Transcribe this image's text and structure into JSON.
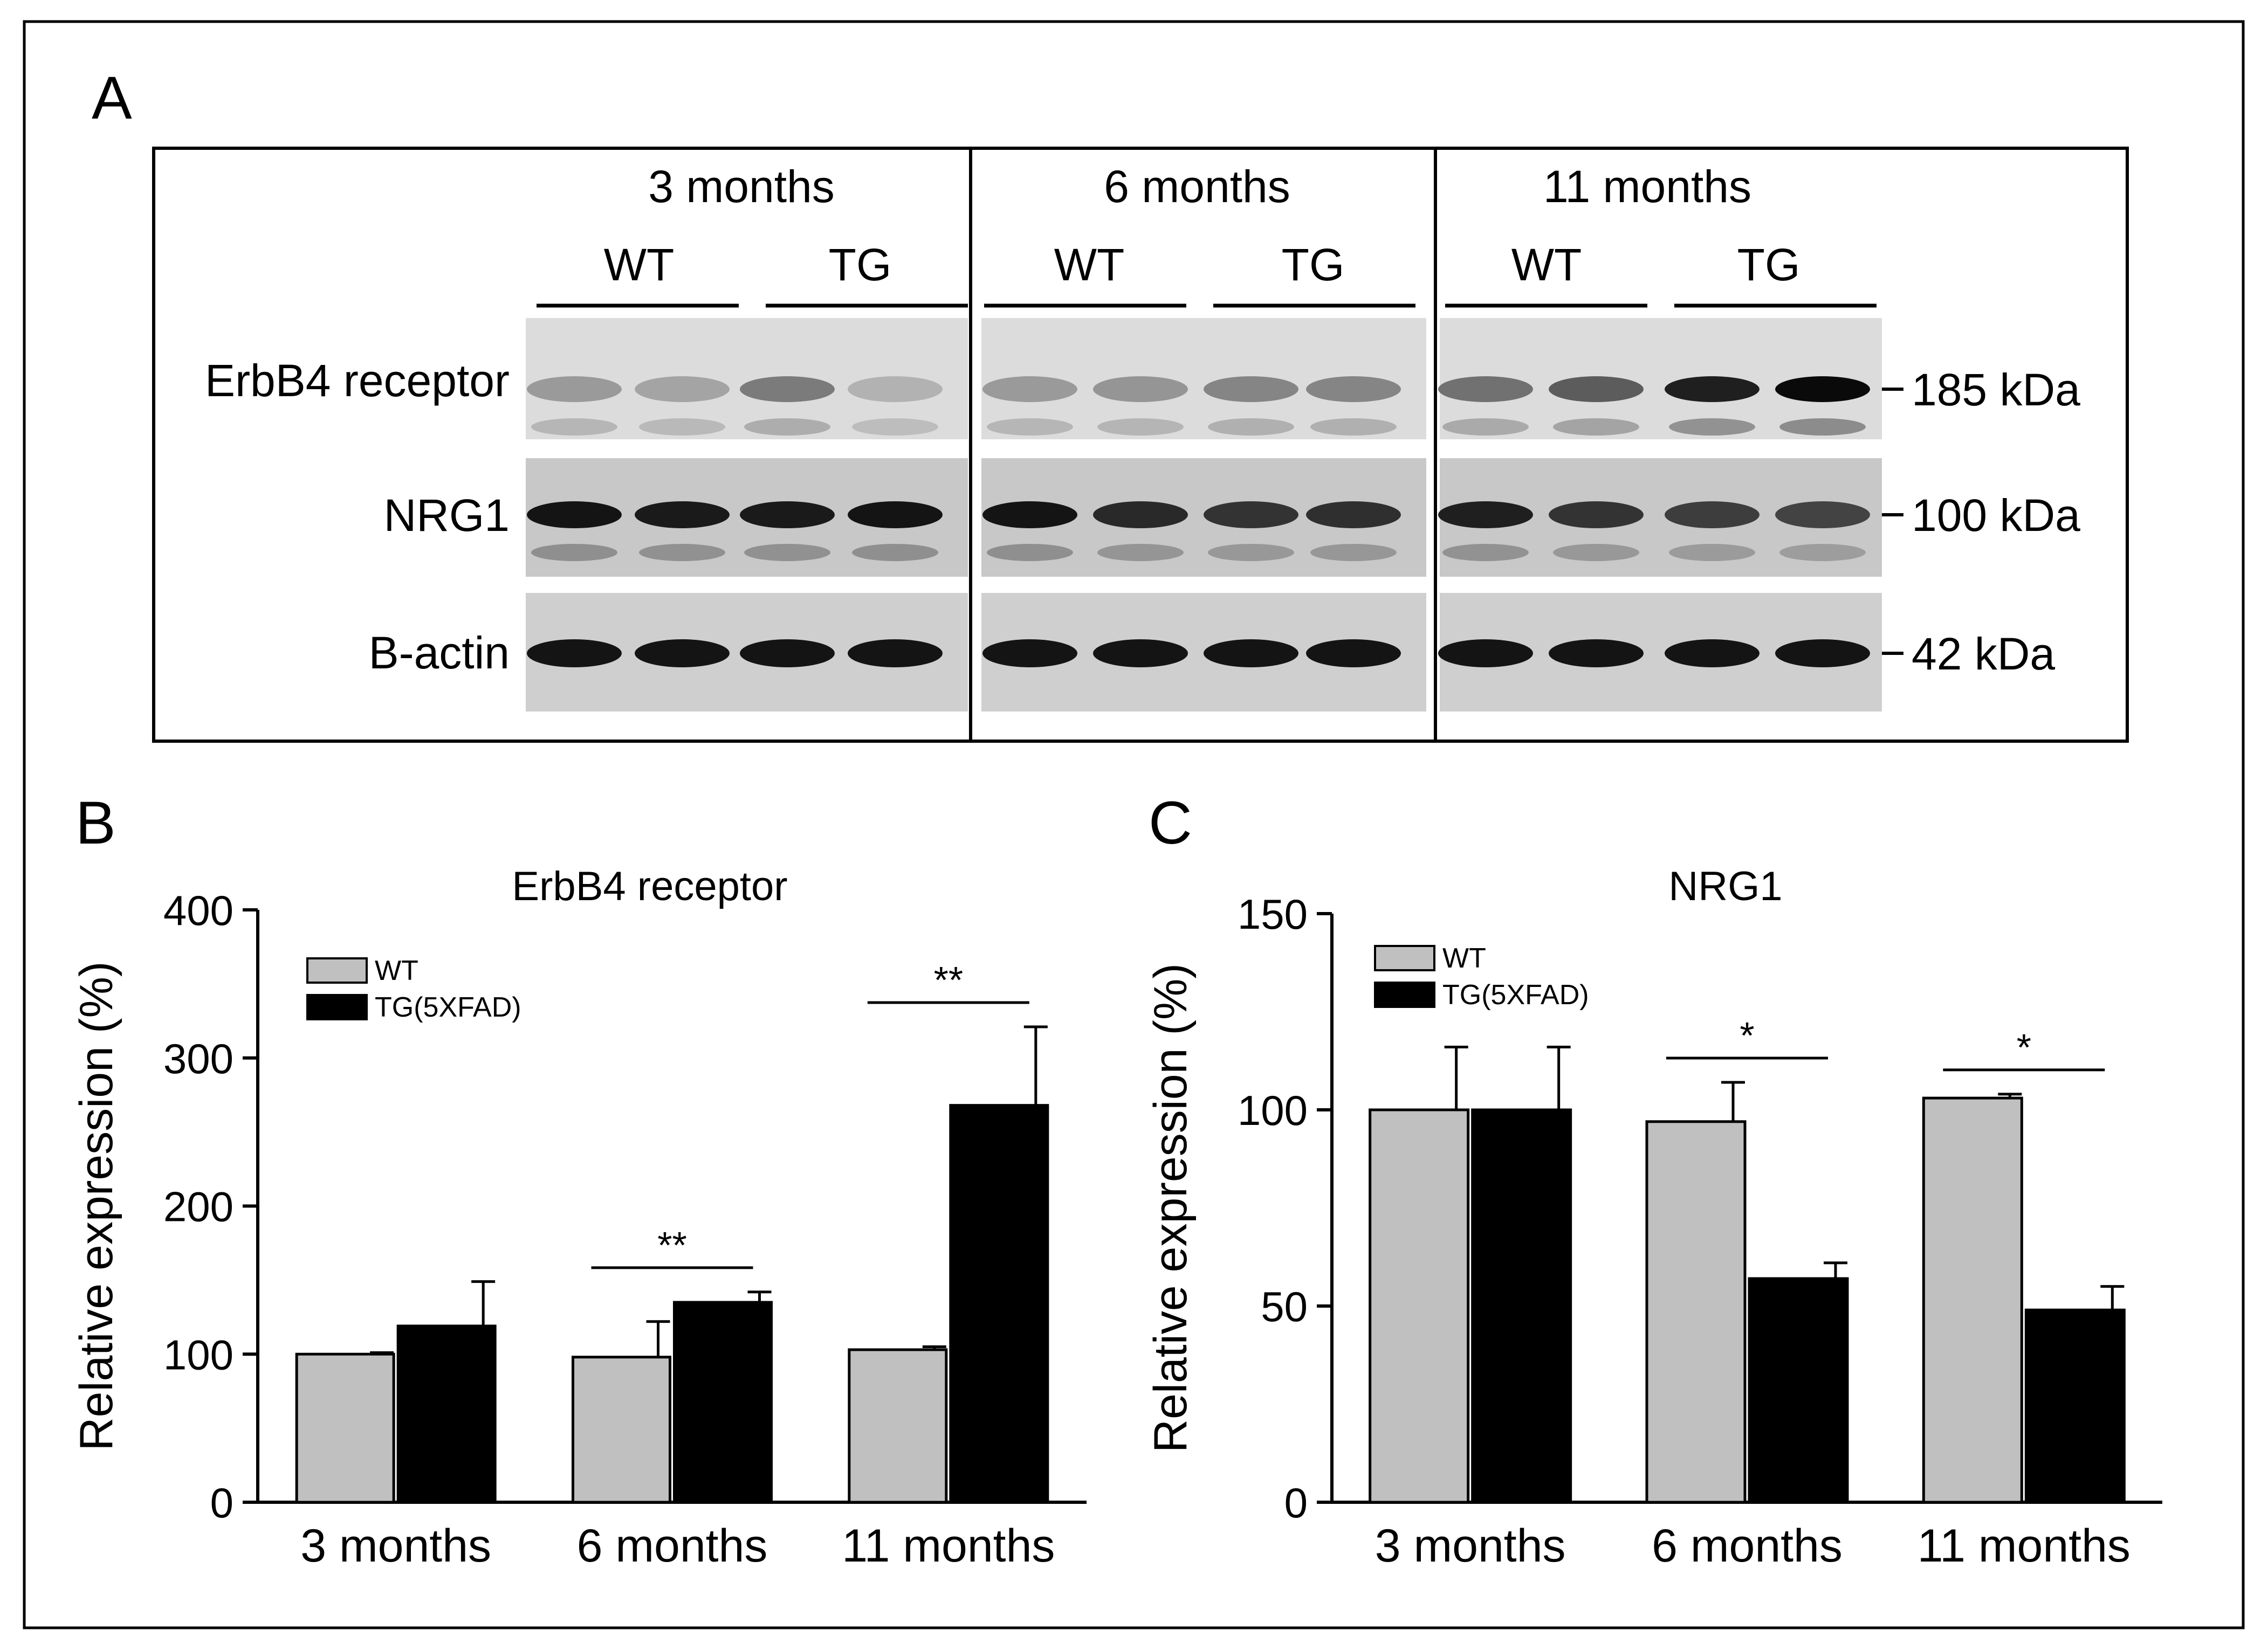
{
  "panel_a": {
    "label": "A",
    "groups": [
      {
        "title": "3 months",
        "wt": "WT",
        "tg": "TG"
      },
      {
        "title": "6 months",
        "wt": "WT",
        "tg": "TG"
      },
      {
        "title": "11 months",
        "wt": "WT",
        "tg": "TG"
      }
    ],
    "rows": [
      {
        "label": "ErbB4 receptor",
        "size": "185 kDa"
      },
      {
        "label": "NRG1",
        "size": "100 kDa"
      },
      {
        "label": "B-actin",
        "size": "42 kDa"
      }
    ],
    "band_intensity": {
      "ErbB4 receptor": [
        0.3,
        0.25,
        0.45,
        0.18,
        0.3,
        0.32,
        0.4,
        0.4,
        0.5,
        0.6,
        0.9,
        1.0
      ],
      "NRG1": [
        0.95,
        0.92,
        0.92,
        0.95,
        0.95,
        0.85,
        0.8,
        0.82,
        0.9,
        0.8,
        0.75,
        0.72
      ],
      "B-actin": [
        0.95,
        0.95,
        0.95,
        0.95,
        0.95,
        0.95,
        0.95,
        0.95,
        0.95,
        0.95,
        0.95,
        0.95
      ]
    }
  },
  "chart_data": [
    {
      "panel_label": "B",
      "type": "bar",
      "title": "ErbB4 receptor",
      "ylabel": "Relative expression (%)",
      "xlabel": "",
      "categories": [
        "3 months",
        "6 months",
        "11 months"
      ],
      "ylim": [
        0,
        400
      ],
      "yticks": [
        0,
        100,
        200,
        300,
        400
      ],
      "series": [
        {
          "name": "WT",
          "color": "#c0c0c0",
          "values": [
            100,
            98,
            103
          ],
          "errors": [
            1,
            24,
            2
          ]
        },
        {
          "name": "TG(5XFAD)",
          "color": "#000000",
          "values": [
            119,
            135,
            268
          ],
          "errors": [
            30,
            7,
            53
          ]
        }
      ],
      "legend": "top-left",
      "significance": [
        {
          "category": 1,
          "text": "**"
        },
        {
          "category": 2,
          "text": "**"
        }
      ]
    },
    {
      "panel_label": "C",
      "type": "bar",
      "title": "NRG1",
      "ylabel": "Relative expression (%)",
      "xlabel": "",
      "categories": [
        "3 months",
        "6 months",
        "11 months"
      ],
      "ylim": [
        0,
        150
      ],
      "yticks": [
        0,
        50,
        100,
        150
      ],
      "series": [
        {
          "name": "WT",
          "color": "#c0c0c0",
          "values": [
            100,
            97,
            103
          ],
          "errors": [
            16,
            10,
            1
          ]
        },
        {
          "name": "TG(5XFAD)",
          "color": "#000000",
          "values": [
            100,
            57,
            49
          ],
          "errors": [
            16,
            4,
            6
          ]
        }
      ],
      "legend": "top-left",
      "significance": [
        {
          "category": 1,
          "text": "*"
        },
        {
          "category": 2,
          "text": "*"
        }
      ]
    }
  ],
  "colors": {
    "title": "#2e5c96",
    "axis": "#000000"
  }
}
